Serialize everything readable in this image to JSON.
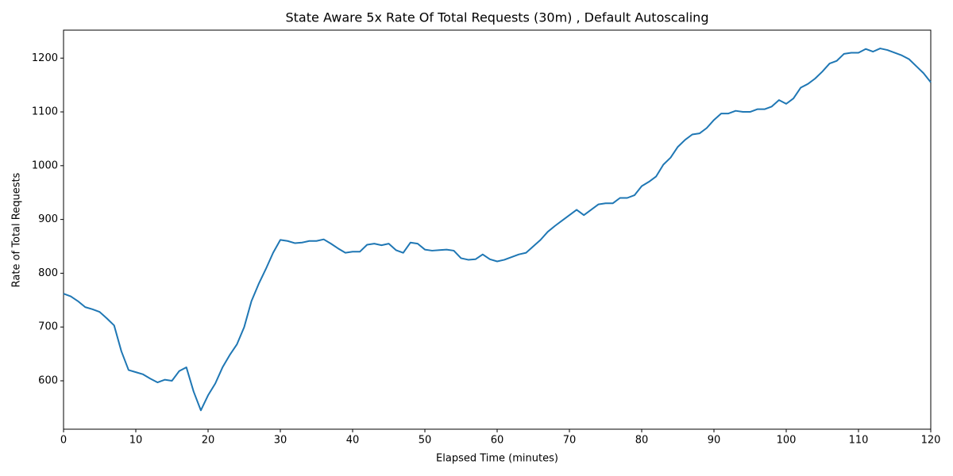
{
  "chart_data": {
    "type": "line",
    "title": "State Aware 5x Rate Of Total Requests (30m) , Default Autoscaling",
    "xlabel": "Elapsed Time (minutes)",
    "ylabel": "Rate of Total Requests",
    "x": [
      0,
      1,
      2,
      3,
      4,
      5,
      6,
      7,
      8,
      9,
      10,
      11,
      12,
      13,
      14,
      15,
      16,
      17,
      18,
      19,
      20,
      21,
      22,
      23,
      24,
      25,
      26,
      27,
      28,
      29,
      30,
      31,
      32,
      33,
      34,
      35,
      36,
      37,
      38,
      39,
      40,
      41,
      42,
      43,
      44,
      45,
      46,
      47,
      48,
      49,
      50,
      51,
      52,
      53,
      54,
      55,
      56,
      57,
      58,
      59,
      60,
      61,
      62,
      63,
      64,
      65,
      66,
      67,
      68,
      69,
      70,
      71,
      72,
      73,
      74,
      75,
      76,
      77,
      78,
      79,
      80,
      81,
      82,
      83,
      84,
      85,
      86,
      87,
      88,
      89,
      90,
      91,
      92,
      93,
      94,
      95,
      96,
      97,
      98,
      99,
      100,
      101,
      102,
      103,
      104,
      105,
      106,
      107,
      108,
      109,
      110,
      111,
      112,
      113,
      114,
      115,
      116,
      117,
      118,
      119,
      120
    ],
    "values": [
      762,
      757,
      748,
      737,
      733,
      728,
      716,
      703,
      655,
      620,
      616,
      612,
      604,
      597,
      602,
      600,
      618,
      625,
      580,
      545,
      573,
      595,
      625,
      648,
      668,
      700,
      748,
      780,
      808,
      838,
      862,
      860,
      856,
      857,
      860,
      860,
      863,
      855,
      846,
      838,
      840,
      840,
      853,
      855,
      852,
      855,
      843,
      838,
      857,
      855,
      844,
      842,
      843,
      844,
      842,
      828,
      825,
      826,
      835,
      826,
      822,
      825,
      830,
      835,
      838,
      850,
      862,
      877,
      888,
      898,
      908,
      918,
      908,
      918,
      928,
      930,
      930,
      940,
      940,
      945,
      962,
      970,
      980,
      1002,
      1015,
      1035,
      1048,
      1058,
      1060,
      1070,
      1085,
      1097,
      1097,
      1102,
      1100,
      1100,
      1105,
      1105,
      1110,
      1122,
      1115,
      1125,
      1145,
      1152,
      1162,
      1175,
      1190,
      1195,
      1208,
      1210,
      1210,
      1217,
      1212,
      1218,
      1215,
      1210,
      1205,
      1198,
      1185,
      1172,
      1155
    ],
    "color": "#1f77b4",
    "xlim": [
      0,
      120
    ],
    "xticks": [
      0,
      10,
      20,
      30,
      40,
      50,
      60,
      70,
      80,
      90,
      100,
      110,
      120
    ],
    "ylim": [
      510,
      1252
    ],
    "yticks": [
      600,
      700,
      800,
      900,
      1000,
      1100,
      1200
    ],
    "grid": false
  }
}
